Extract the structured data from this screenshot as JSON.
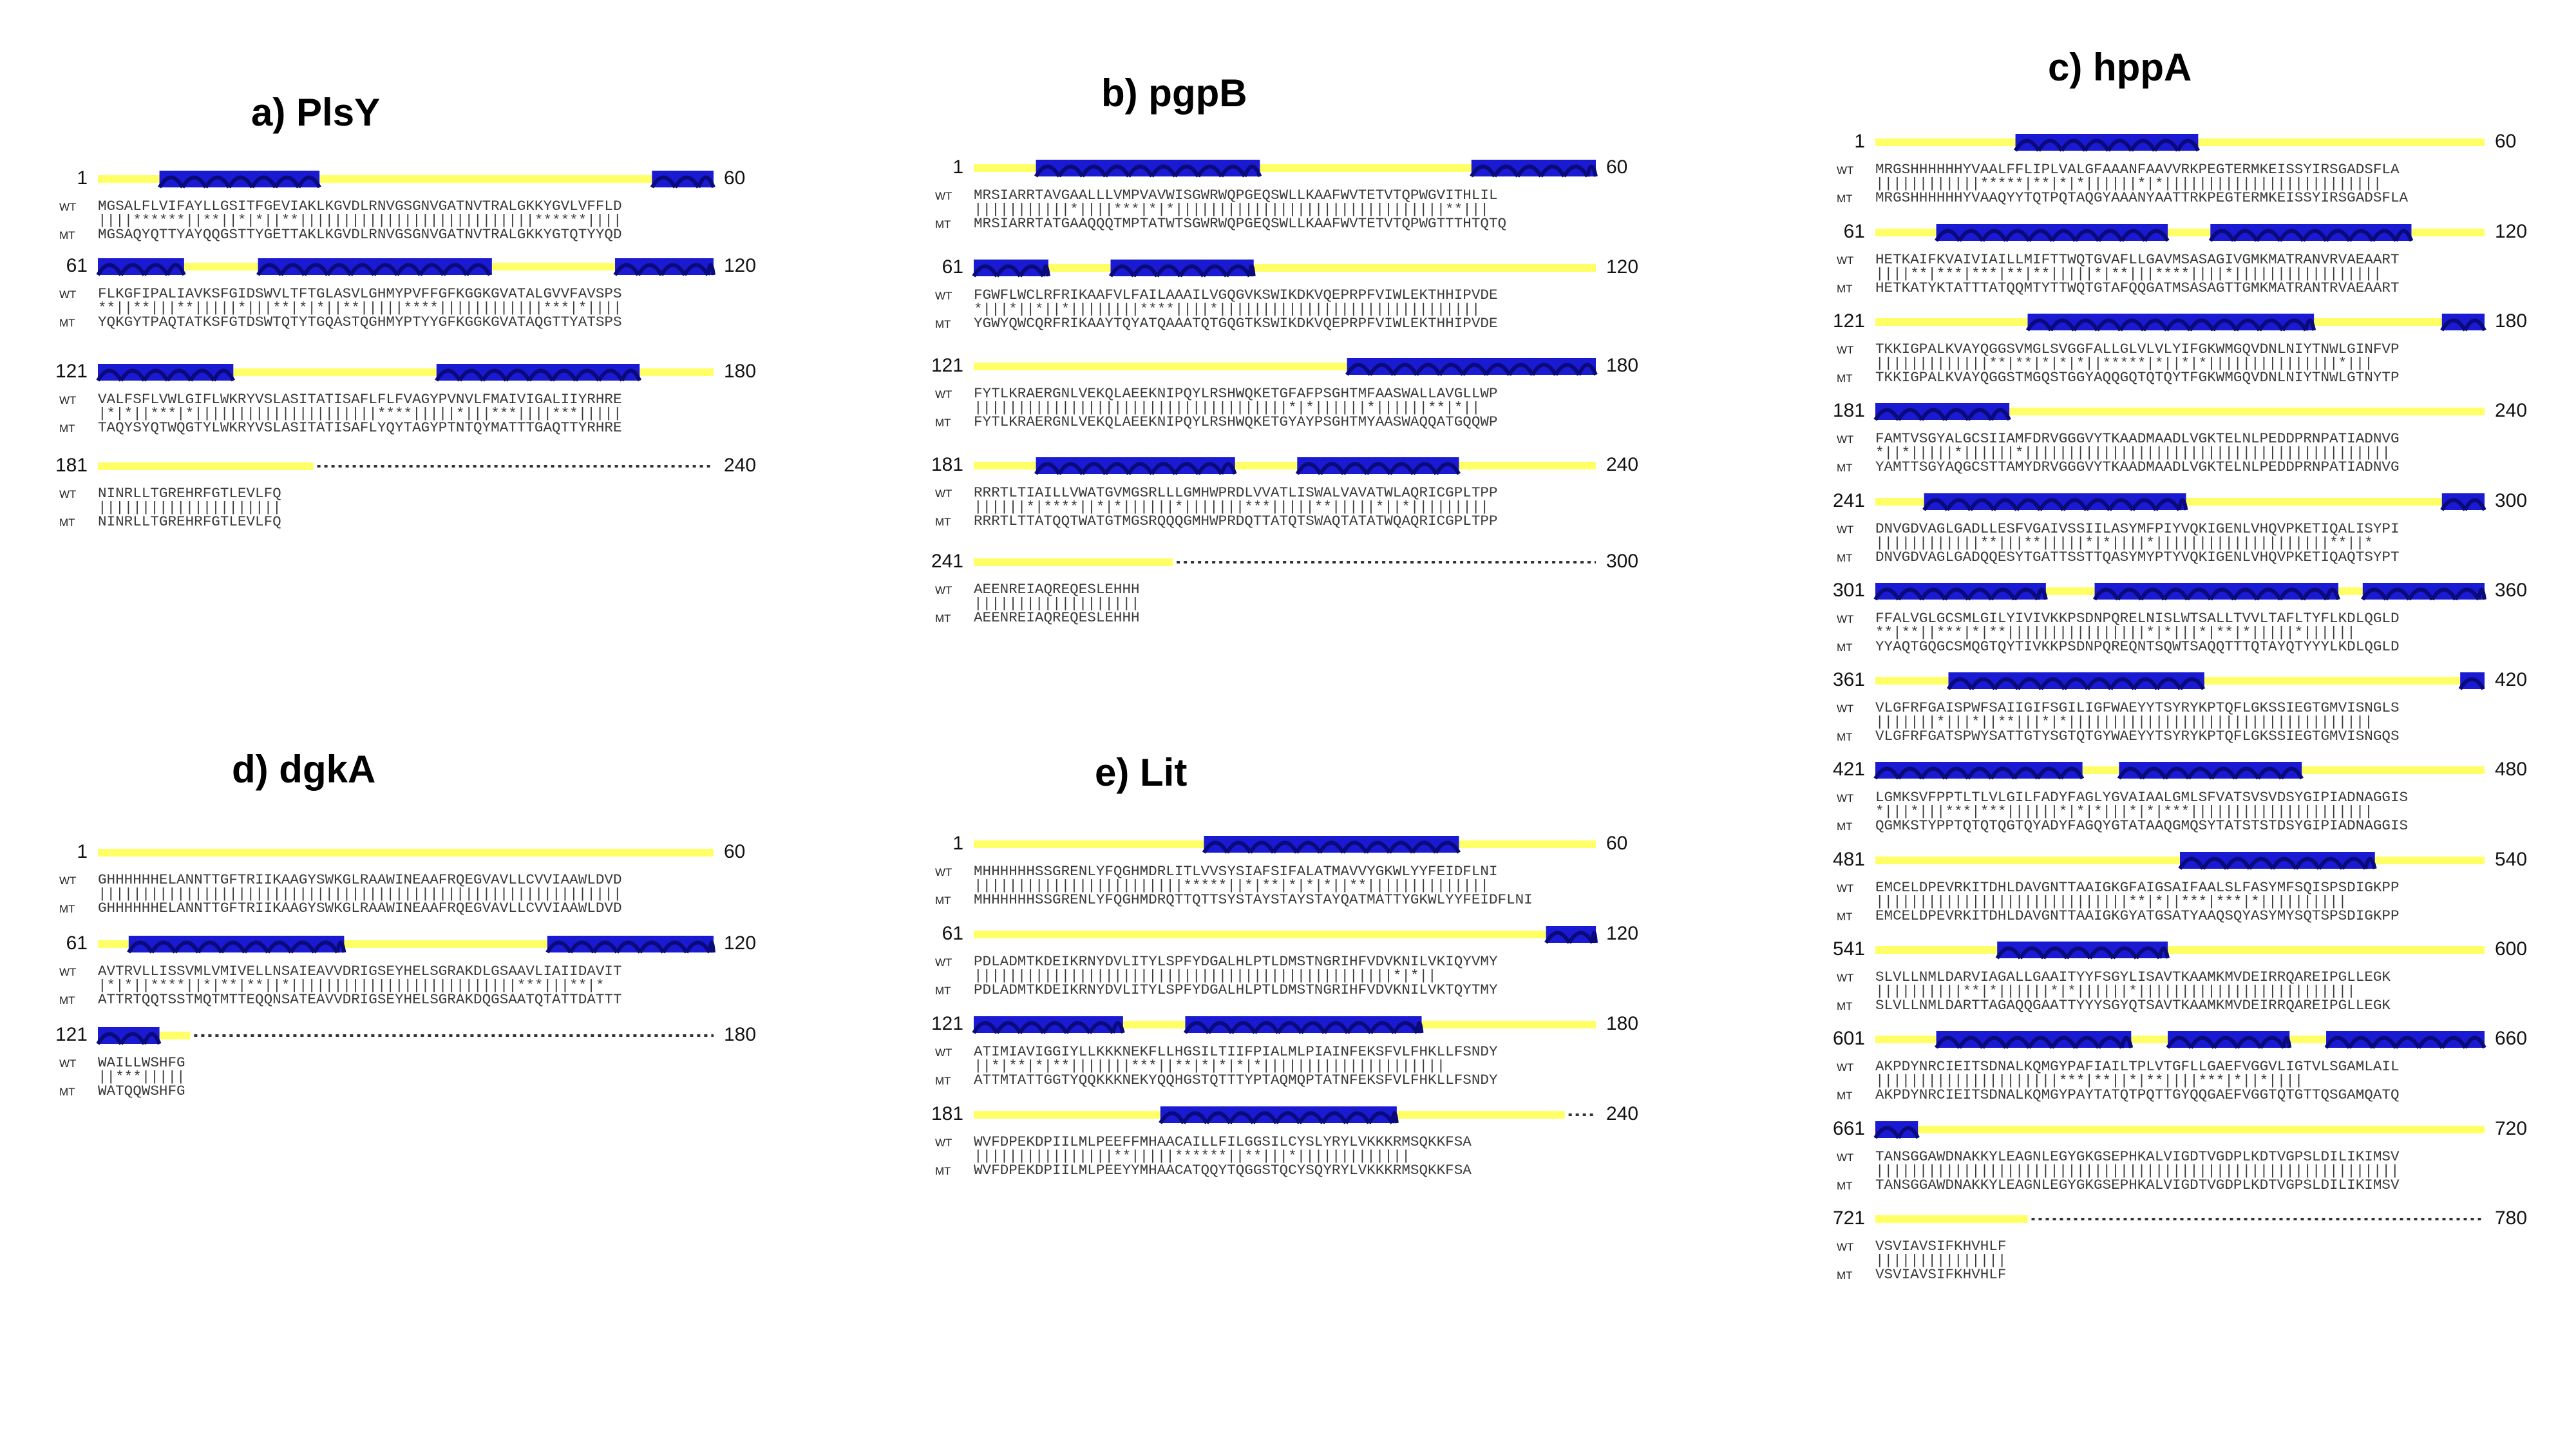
{
  "row_labels": {
    "wt": "WT",
    "mt": "MT"
  },
  "colors": {
    "coil": "#ffff66",
    "helix": "#1a1ad2",
    "helix_dark": "#0a0a7a",
    "unmodelled": "#333333"
  },
  "panels": [
    {
      "id": "a",
      "title": "a)  PlsY",
      "blocks": [
        {
          "start": "1",
          "end": "60",
          "wt": "MGSALFLVIFAYLLGSITFGEVIAKLKGVDLRNVGSGNVGATNVTRALGKKYGVLVFFLD",
          "match": "||||******||**||*|*||**|||||||||||||||||||||||||||******||||",
          "mt": "MGSAQYQTTYAYQQGSTTYGETTAKLKGVDLRNVGSGNVGATNVTRALGKKYGTQTYYQD",
          "coil_end": 1.0,
          "helices": [
            [
              0.1,
              0.36
            ],
            [
              0.9,
              1.0
            ]
          ]
        },
        {
          "start": "61",
          "end": "120",
          "wt": "FLKGFIPALIAVKSFGIDSWVLTFTGLASVLGHMYPVFFGFKGGKGVATALGVVFAVSPS",
          "match": "**||**|||**|||||*|||**|*|*||**|||||****||||||||||||***|*||||",
          "mt": "YQKGYTPAQTATKSFGTDSWTQTYTGQASTQGHMYPTYYGFKGGKGVATAQGTTYATSPS",
          "coil_end": 1.0,
          "helices": [
            [
              0.0,
              0.14
            ],
            [
              0.26,
              0.64
            ],
            [
              0.84,
              1.0
            ]
          ]
        },
        {
          "start": "121",
          "end": "180",
          "wt": "VALFSFLVWLGIFLWKRYVSLASITATISAFLFLFVAGYPVNVLFMAIVIGALIIYRHRE",
          "match": "|*|*||***|*|||||||||||||||||||||****|||||*|||***||||***|||||",
          "mt": "TAQYSYQTWQGTYLWKRYVSLASITATISAFLYQYTAGYPTNTQYMATTTGAQTTYRHRE",
          "coil_end": 1.0,
          "helices": [
            [
              0.0,
              0.22
            ],
            [
              0.55,
              0.88
            ]
          ]
        },
        {
          "start": "181",
          "end": "240",
          "wt": "NINRLLTGREHRFGTLEVLFQ",
          "match": "|||||||||||||||||||||",
          "mt": "NINRLLTGREHRFGTLEVLFQ",
          "coil_end": 0.35,
          "helices": []
        }
      ]
    },
    {
      "id": "b",
      "title": "b)  pgpB",
      "blocks": [
        {
          "start": "1",
          "end": "60",
          "wt": "MRSIARRTAVGAALLLVMPVAVWISGWRWQPGEQSWLLKAAFWVTETVTQPWGVITHLIL",
          "match": "|||||||||||*||||***|*|*|||||||||||||||||||||||||||||||**|||",
          "mt": "MRSIARRTATGAAQQQTMPTATWTSGWRWQPGEQSWLLKAAFWVTETVTQPWGTTTHTQTQ",
          "coil_end": 1.0,
          "helices": [
            [
              0.1,
              0.46
            ],
            [
              0.8,
              1.0
            ]
          ]
        },
        {
          "start": "61",
          "end": "120",
          "wt": "FGWFLWCLRFRIKAAFVLFAILAAAILVGQGVKSWIKDKVQEPRPFVIWLEKTHHIPVDE",
          "match": "*|||*||*||*||||||||****||||*||||||||||||||||||||||||||||||",
          "mt": "YGWYQWCQRFRIKAAYTQYATQAAATQTGQGTKSWIKDKVQEPRPFVIWLEKTHHIPVDE",
          "coil_end": 1.0,
          "helices": [
            [
              0.0,
              0.12
            ],
            [
              0.22,
              0.45
            ]
          ]
        },
        {
          "start": "121",
          "end": "180",
          "wt": "FYTLKRAERGNLVEKQLAEEKNIPQYLRSHWQKETGFAFPSGHTMFAASWALLAVGLLWP",
          "match": "||||||||||||||||||||||||||||||||||||*|*||||||*||||||**|*||",
          "mt": "FYTLKRAERGNLVEKQLAEEKNIPQYLRSHWQKETGYAYPSGHTMYAASWAQQATGQQWP",
          "coil_end": 1.0,
          "helices": [
            [
              0.6,
              1.0
            ]
          ]
        },
        {
          "start": "181",
          "end": "240",
          "wt": "RRRTLTIAILLVWATGVMGSRLLLGMHWPRDLVVATLISWALVAVATWLAQRICGPLTPP",
          "match": "||||||*|****||*|*||||||*|||||||***|||||**|||||*||*|||||||||",
          "mt": "RRRTLTTATQQTWATGTMGSRQQQGMHWPRDQTTATQTSWAQTATATWQAQRICGPLTPP",
          "coil_end": 1.0,
          "helices": [
            [
              0.1,
              0.42
            ],
            [
              0.52,
              0.78
            ]
          ]
        },
        {
          "start": "241",
          "end": "300",
          "wt": "AEENREIAQREQESLEHHH",
          "match": "|||||||||||||||||||",
          "mt": "AEENREIAQREQESLEHHH",
          "coil_end": 0.32,
          "helices": []
        }
      ]
    },
    {
      "id": "c",
      "title": "c)  hppA",
      "blocks": [
        {
          "start": "1",
          "end": "60",
          "wt": "MRGSHHHHHHYVAALFFLIPLVALGFAAANFAAVVRKPEGTERMKEISSYIRSGADSFLA",
          "match": "||||||||||||*****|**|*|*||||||*|*|||||||||||||||||||||||||",
          "mt": "MRGSHHHHHHYVAAQYYTQTPQTAQGYAAANYAATTRKPEGTERMKEISSYIRSGADSFLA",
          "coil_end": 1.0,
          "helices": [
            [
              0.23,
              0.53
            ]
          ]
        },
        {
          "start": "61",
          "end": "120",
          "wt": "HETKAIFKVAIVIAILLMIFTTWQTGVAFLLGAVMSASAGIVGMKMATRANVRVAEAART",
          "match": "||||**|***|***|**|**|||||*|**|||****||||*|||||||||||||||||",
          "mt": "HETKATYKTATTTATQQMTYTTWQTGTAFQQGATMSASAGTTGMKMATRANTRVAEAART",
          "coil_end": 1.0,
          "helices": [
            [
              0.1,
              0.48
            ],
            [
              0.55,
              0.88
            ]
          ]
        },
        {
          "start": "121",
          "end": "180",
          "wt": "TKKIGPALKVAYQGGSVMGLSVGGFALLGLVLVLYIFGKWMGQVDNLNIYTNWLGINFVP",
          "match": "|||||||||||||**|**|*|*|*||*****|*||*|*|||||||||||||||*|||",
          "mt": "TKKIGPALKVAYQGGSTMGQSTGGYAQQGQTQTQYTFGKWMGQVDNLNIYTNWLGTNYTP",
          "coil_end": 1.0,
          "helices": [
            [
              0.25,
              0.72
            ],
            [
              0.93,
              1.0
            ]
          ]
        },
        {
          "start": "181",
          "end": "240",
          "wt": "FAMTVSGYALGCSIIAMFDRVGGGVYTKAADMAADLVGKTELNLPEDDPRNPATIADNVG",
          "match": "*||*|||||*||||||*||||||||||||||||||||||||||||||||||||||||||",
          "mt": "YAMTTSGYAQGCSTTAMYDRVGGGVYTKAADMAADLVGKTELNLPEDDPRNPATIADNVG",
          "coil_end": 1.0,
          "helices": [
            [
              0.0,
              0.22
            ]
          ]
        },
        {
          "start": "241",
          "end": "300",
          "wt": "DNVGDVAGLGADLLESFVGAIVSSIILASYMFPIYVQKIGENLVHQVPKETIQALISYPI",
          "match": "||||||||||||**|||**|||||*|*||||*||||||||||||||||||||**||*",
          "mt": "DNVGDVAGLGADQQESYTGATTSSTTQASYMYPTYVQKIGENLVHQVPKETIQAQTSYPT",
          "coil_end": 1.0,
          "helices": [
            [
              0.08,
              0.51
            ],
            [
              0.93,
              1.0
            ]
          ]
        },
        {
          "start": "301",
          "end": "360",
          "wt": "FFALVGLGCSMLGILYIVIVKKPSDNPQRELNISLWTSALLTVVLTAFLTYFLKDLQGLD",
          "match": "**|**||***|*|**||||||||||||||||*|*|||*|**|*|||||*||||||",
          "mt": "YYAQTGQGCSMQGTQYTIVKKPSDNPQREQNTSQWTSAQQTTTQTAYQTYYYLKDLQGLD",
          "coil_end": 1.0,
          "helices": [
            [
              0.0,
              0.28
            ],
            [
              0.36,
              0.76
            ],
            [
              0.8,
              1.0
            ]
          ]
        },
        {
          "start": "361",
          "end": "420",
          "wt": "VLGFRFGAISPWFSAIIGIFSGILIGFWAEYYTSYRYKPTQFLGKSSIEGTGMVISNGLS",
          "match": "|||||||*|||*||**|||*|*|||||||||||||||||||||||||||||||||||",
          "mt": "VLGFRFGATSPWYSATTGTYSGTQTGYWAEYYTSYRYKPTQFLGKSSIEGTGMVISNGQS",
          "coil_end": 1.0,
          "helices": [
            [
              0.12,
              0.54
            ],
            [
              0.96,
              1.0
            ]
          ]
        },
        {
          "start": "421",
          "end": "480",
          "wt": "LGMKSVFPPTLTLVLGILFADYFAGLYGVAIAALGMLSFVATSVSVDSYGIPIADNAGGIS",
          "match": "*|||*|||***|***||||||*|*|*|||*|*|***|||||||||||||||||||||",
          "mt": "QGMKSTYPPTQTQTQGTQYADYFAGQYGTATAAQGMQSYTATSTSTDSYGIPIADNAGGIS",
          "coil_end": 1.0,
          "helices": [
            [
              0.0,
              0.34
            ],
            [
              0.4,
              0.7
            ]
          ]
        },
        {
          "start": "481",
          "end": "540",
          "wt": "EMCELDPEVRKITDHLDAVGNTTAAIGKGFAIGSAIFAALSLFASYMFSQISPSDIGKPP",
          "match": "|||||||||||||||||||||||||||||**|*||***|***|*||||||||||",
          "mt": "EMCELDPEVRKITDHLDAVGNTTAAIGKGYATGSATYAAQSQYASYMYSQTSPSDIGKPP",
          "coil_end": 1.0,
          "helices": [
            [
              0.5,
              0.82
            ]
          ]
        },
        {
          "start": "541",
          "end": "600",
          "wt": "SLVLLNMLDARVIAGALLGAAITYYFSGYLISAVTKAAMKMVDEIRRQAREIPGLLEGK",
          "match": "||||||||||**|*||||||*|*||||||*|||||||||||||||||||||||||",
          "mt": "SLVLLNMLDARTTAGAQQGAATTYYYSGYQTSAVTKAAMKMVDEIRRQAREIPGLLEGK",
          "coil_end": 1.0,
          "helices": [
            [
              0.2,
              0.48
            ]
          ]
        },
        {
          "start": "601",
          "end": "660",
          "wt": "AKPDYNRCIEITSDNALKQMGYPAFIAILTPLVTGFLLGAEFVGGVLIGTVLSGAMLAIL",
          "match": "|||||||||||||||||||||***|**||*|**||||***|*||*||||",
          "mt": "AKPDYNRCIEITSDNALKQMGYPAYTATQTPQTTGYQQGAEFVGGTQTGTTQSGAMQATQ",
          "coil_end": 1.0,
          "helices": [
            [
              0.1,
              0.42
            ],
            [
              0.48,
              0.68
            ],
            [
              0.74,
              1.0
            ]
          ]
        },
        {
          "start": "661",
          "end": "720",
          "wt": "TANSGGAWDNAKKYLEAGNLEGYGKGSEPHKALVIGDTVGDPLKDTVGPSLDILIKIMSV",
          "match": "||||||||||||||||||||||||||||||||||||||||||||||||||||||||||||",
          "mt": "TANSGGAWDNAKKYLEAGNLEGYGKGSEPHKALVIGDTVGDPLKDTVGPSLDILIKIMSV",
          "coil_end": 1.0,
          "helices": [
            [
              0.0,
              0.07
            ]
          ]
        },
        {
          "start": "721",
          "end": "780",
          "wt": "VSVIAVSIFKHVHLF",
          "match": "|||||||||||||||",
          "mt": "VSVIAVSIFKHVHLF",
          "coil_end": 0.25,
          "helices": []
        }
      ]
    },
    {
      "id": "d",
      "title": "d)  dgkA",
      "blocks": [
        {
          "start": "1",
          "end": "60",
          "wt": "GHHHHHHELANNTTGFTRIIKAAGYSWKGLRAAWINEAAFRQEGVAVLLCVVIAAWLDVD",
          "match": "||||||||||||||||||||||||||||||||||||||||||||||||||||||||||||",
          "mt": "GHHHHHHELANNTTGFTRIIKAAGYSWKGLRAAWINEAAFRQEGVAVLLCVVIAAWLDVD",
          "coil_end": 1.0,
          "helices": []
        },
        {
          "start": "61",
          "end": "120",
          "wt": "AVTRVLLISSVMLVMIVELLNSAIEAVVDRIGSEYHELSGRAKDLGSAAVLIAIIDAVIT",
          "match": "|*|*||****||*|**|**||*||||||||||||||||||||||||||***|||**|*",
          "mt": "ATTRTQQTSSTMQTMTTEQQNSATEAVVDRIGSEYHELSGRAKDQGSAATQTATTDATTT",
          "coil_end": 1.0,
          "helices": [
            [
              0.05,
              0.4
            ],
            [
              0.73,
              1.0
            ]
          ]
        },
        {
          "start": "121",
          "end": "180",
          "wt": "WAILLWSHFG",
          "match": "||***|||||",
          "mt": "WATQQWSHFG",
          "coil_end": 0.15,
          "helices": [
            [
              0.0,
              0.1
            ]
          ]
        }
      ]
    },
    {
      "id": "e",
      "title": "e)  Lit",
      "blocks": [
        {
          "start": "1",
          "end": "60",
          "wt": "MHHHHHHSSGRENLYFQGHMDRLITLVVSYSIAFSIFALATMAVVYGKWLYYFEIDFLNI",
          "match": "||||||||||||||||||||||||*****||*|**|*|*|*||**||||||||||||||",
          "mt": "MHHHHHHSSGRENLYFQGHMDRQTTQTTSYSTAYSTAYSTAYQATMATTYGKWLYYFEIDFLNI",
          "coil_end": 1.0,
          "helices": [
            [
              0.37,
              0.78
            ]
          ]
        },
        {
          "start": "61",
          "end": "120",
          "wt": "PDLADMTKDEIKRNYDVLITYLSPFYDGALHLPTLDMSTNGRIHFVDVKNILVKIQYVMY",
          "match": "||||||||||||||||||||||||||||||||||||||||||||||||*|*||",
          "mt": "PDLADMTKDEIKRNYDVLITYLSPFYDGALHLPTLDMSTNGRIHFVDVKNILVKTQYTMY",
          "coil_end": 1.0,
          "helices": [
            [
              0.92,
              1.0
            ]
          ]
        },
        {
          "start": "121",
          "end": "180",
          "wt": "ATIMIAVIGGIYLLKKKNEKFLLHGSILTIIFPIALMLPIAINFEKSFVLFHKLLFSNDY",
          "match": "||*|**|*|**|||||||***||**|*|*|*|*|||||||||||||||||||||",
          "mt": "ATTMTATTGGTYQQKKKNEKYQQHGSTQTTTYPTAQMQPTATNFEKSFVLFHKLLFSNDY",
          "coil_end": 1.0,
          "helices": [
            [
              0.0,
              0.24
            ],
            [
              0.34,
              0.72
            ]
          ]
        },
        {
          "start": "181",
          "end": "240",
          "wt": "WVFDPEKDPIILMLPEEFFMHAACAILLFILGGSILCYSLYRYLVKKKRMSQKKFSA",
          "match": "||||||||||||||||**|||||******||**|||*|||||||||||||",
          "mt": "WVFDPEKDPIILMLPEEYYMHAACATQQYTQGGSTQCYSQYRYLVKKKRMSQKKFSA",
          "coil_end": 0.95,
          "helices": [
            [
              0.3,
              0.68
            ]
          ]
        }
      ]
    }
  ]
}
